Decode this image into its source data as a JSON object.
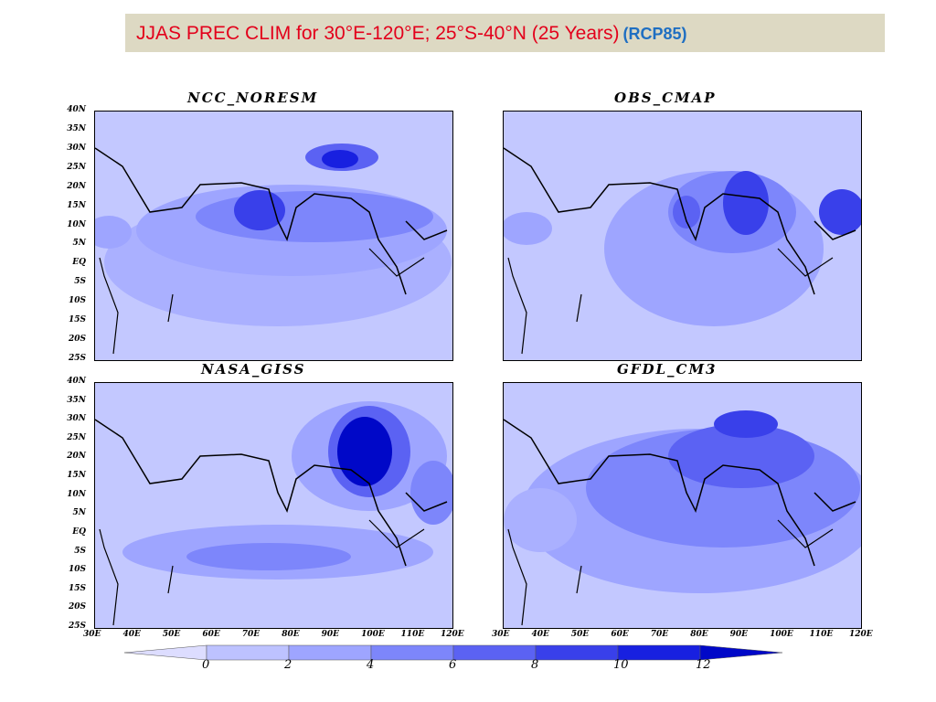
{
  "title": {
    "main": "JJAS PREC CLIM for 30°E-120°E; 25°S-40°N (25 Years)",
    "sub": "(RCP85)"
  },
  "panels": [
    {
      "name": "NCC_NORESM"
    },
    {
      "name": "OBS_CMAP"
    },
    {
      "name": "NASA_GISS"
    },
    {
      "name": "GFDL_CM3"
    }
  ],
  "axes": {
    "lat_labels_top": [
      "40N",
      "35N",
      "30N",
      "25N",
      "20N",
      "15N",
      "10N",
      "5N",
      "EQ",
      "5S",
      "10S",
      "15S",
      "20S",
      "25S"
    ],
    "lat_labels_bottom": [
      "40N",
      "35N",
      "30N",
      "25N",
      "20N",
      "15N",
      "10N",
      "5N",
      "EQ",
      "5S",
      "10S",
      "15S",
      "20S",
      "25S"
    ],
    "lon_labels_left": [
      "30E",
      "40E",
      "50E",
      "60E",
      "70E",
      "80E",
      "90E",
      "100E",
      "110E",
      "120E"
    ],
    "lon_labels_right": [
      "30E",
      "40E",
      "50E",
      "60E",
      "70E",
      "80E",
      "90E",
      "100E",
      "110E",
      "120E"
    ]
  },
  "colorbar": {
    "ticks": [
      "0",
      "2",
      "4",
      "6",
      "8",
      "10",
      "12"
    ],
    "colors": [
      "#ddddff",
      "#bdc2ff",
      "#9ea5ff",
      "#7d86fb",
      "#5b62f3",
      "#3940ea",
      "#1820e0",
      "#0008c8"
    ]
  },
  "chart_data": {
    "type": "heatmap",
    "title": "JJAS PREC CLIM for 30°E-120°E; 25°S-40°N (25 Years) (RCP85)",
    "xlim": [
      30,
      120
    ],
    "ylim": [
      -25,
      40
    ],
    "xlabel": "",
    "ylabel": "",
    "color_levels": [
      0,
      2,
      4,
      6,
      8,
      10,
      12
    ],
    "maps": [
      {
        "name": "NCC_NORESM",
        "regions": [
          {
            "lon": 70,
            "lat": 8,
            "level": 4
          },
          {
            "lon": 90,
            "lat": 15,
            "level": 6
          },
          {
            "lon": 73,
            "lat": 15,
            "level": 10
          },
          {
            "lon": 95,
            "lat": 30,
            "level": 10
          }
        ]
      },
      {
        "name": "OBS_CMAP",
        "regions": [
          {
            "lon": 85,
            "lat": 8,
            "level": 4
          },
          {
            "lon": 90,
            "lat": 17,
            "level": 10
          },
          {
            "lon": 115,
            "lat": 15,
            "level": 8
          }
        ]
      },
      {
        "name": "NASA_GISS",
        "regions": [
          {
            "lon": 95,
            "lat": 25,
            "level": 12
          },
          {
            "lon": 75,
            "lat": -6,
            "level": 4
          },
          {
            "lon": 110,
            "lat": 10,
            "level": 6
          }
        ]
      },
      {
        "name": "GFDL_CM3",
        "regions": [
          {
            "lon": 90,
            "lat": 18,
            "level": 6
          },
          {
            "lon": 95,
            "lat": 30,
            "level": 10
          },
          {
            "lon": 78,
            "lat": 5,
            "level": 4
          }
        ]
      }
    ]
  }
}
